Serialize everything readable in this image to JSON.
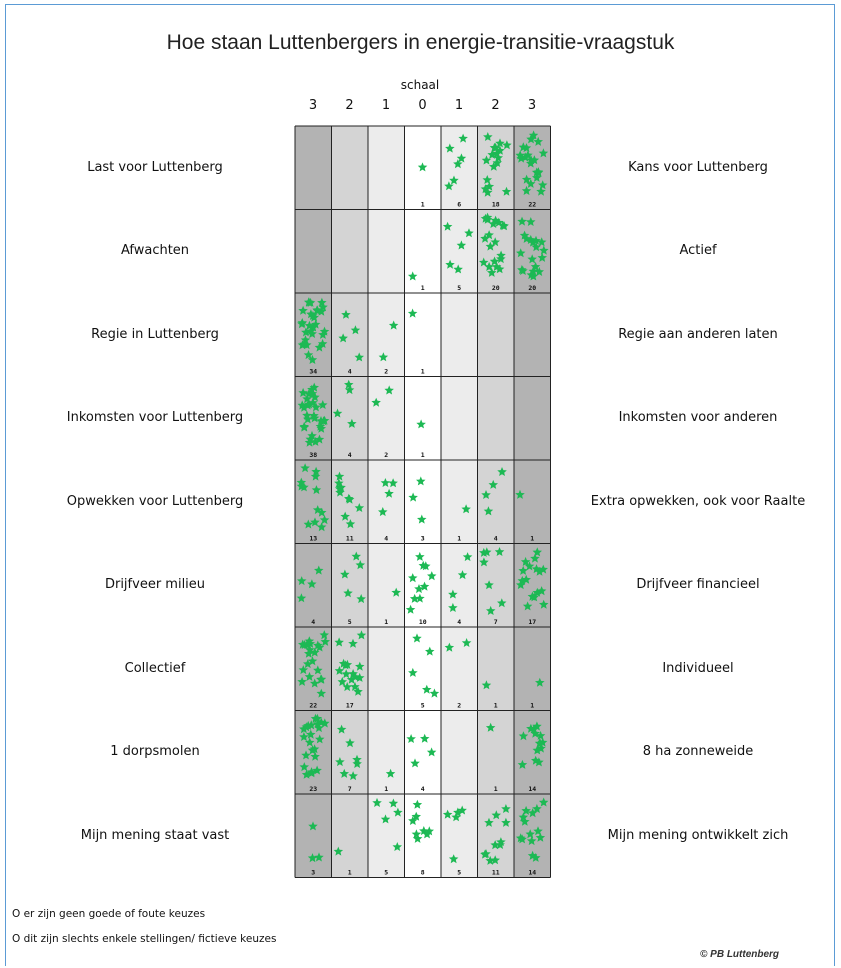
{
  "title": "Hoe staan Luttenbergers in energie-transitie-vraagstuk",
  "scale_label": "schaal",
  "scale_ticks": [
    "3",
    "2",
    "1",
    "0",
    "1",
    "2",
    "3"
  ],
  "notes": [
    "O er zijn geen goede of foute keuzes",
    "O dit zijn slechts enkele stellingen/ fictieve keuzes"
  ],
  "copyright": "© PB Luttenberg",
  "colors": {
    "star": "#1db954",
    "dark_gray": "#b3b3b3",
    "medium_gray": "#d4d4d4",
    "light_gray": "#ececec",
    "white": "#ffffff",
    "gridline": "#222222"
  },
  "chart_data": {
    "type": "table",
    "categories": [
      "3",
      "2",
      "1",
      "0",
      "1",
      "2",
      "3"
    ],
    "rows": [
      {
        "left": "Last voor Luttenberg",
        "right": "Kans voor Luttenberg",
        "counts": [
          null,
          null,
          null,
          1,
          6,
          18,
          22
        ]
      },
      {
        "left": "Afwachten",
        "right": "Actief",
        "counts": [
          null,
          null,
          null,
          1,
          5,
          20,
          20
        ]
      },
      {
        "left": "Regie in Luttenberg",
        "right": "Regie aan anderen laten",
        "counts": [
          34,
          4,
          2,
          1,
          null,
          null,
          null
        ]
      },
      {
        "left": "Inkomsten voor Luttenberg",
        "right": "Inkomsten voor anderen",
        "counts": [
          38,
          4,
          2,
          1,
          null,
          null,
          null
        ]
      },
      {
        "left": "Opwekken voor Luttenberg",
        "right": "Extra opwekken, ook voor Raalte",
        "counts": [
          13,
          11,
          4,
          3,
          1,
          4,
          1
        ]
      },
      {
        "left": "Drijfveer milieu",
        "right": "Drijfveer financieel",
        "counts": [
          4,
          5,
          1,
          10,
          4,
          7,
          17
        ]
      },
      {
        "left": "Collectief",
        "right": "Individueel",
        "counts": [
          22,
          17,
          null,
          5,
          2,
          1,
          1
        ]
      },
      {
        "left": "1 dorpsmolen",
        "right": "8 ha zonneweide",
        "counts": [
          23,
          7,
          1,
          4,
          null,
          1,
          14
        ]
      },
      {
        "left": "Mijn mening staat vast",
        "right": "Mijn mening ontwikkelt zich",
        "counts": [
          3,
          1,
          5,
          8,
          5,
          11,
          14
        ]
      }
    ]
  }
}
